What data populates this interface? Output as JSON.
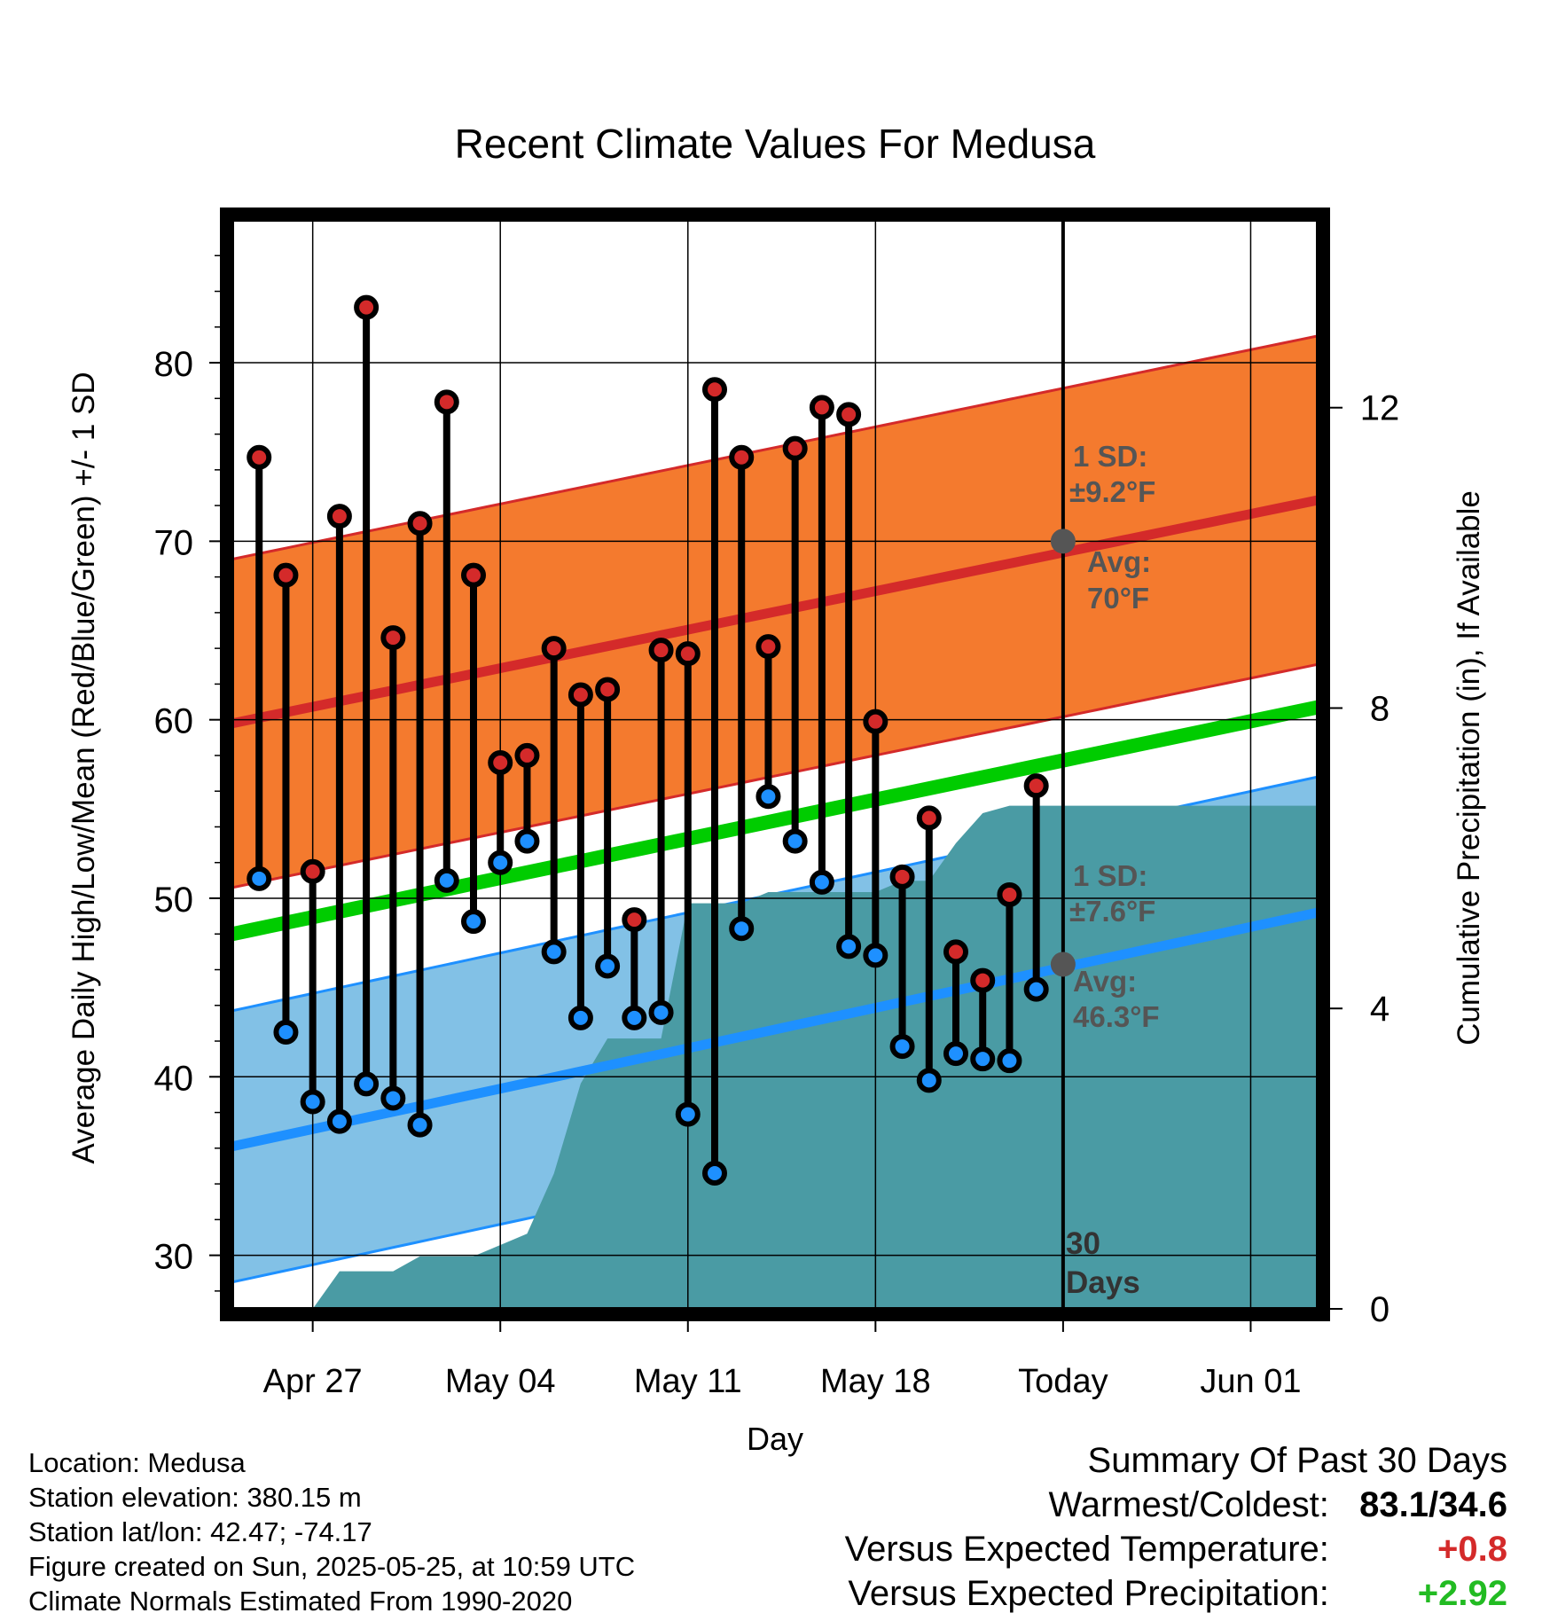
{
  "chart_data": {
    "type": "line",
    "title": "Recent Climate Values For Medusa",
    "xlabel": "Day",
    "ylabel": "Average Daily High/Low/Mean (Red/Blue/Green) +/- 1 SD",
    "ylabel_right": "Cumulative Precipitation (in), If Available",
    "x_tick_labels": [
      "Apr 27",
      "May 04",
      "May 11",
      "May 18",
      "Today",
      "Jun 01"
    ],
    "x_tick_days": [
      2,
      9,
      16,
      23,
      30,
      37
    ],
    "xlim_days": [
      -1,
      39.5
    ],
    "ylim": [
      27,
      88
    ],
    "y_ticks": [
      30,
      40,
      50,
      60,
      70,
      80
    ],
    "y2lim": [
      0,
      14.5
    ],
    "y2_ticks": [
      0,
      4,
      8,
      12
    ],
    "today_label": "30 Days",
    "daily_high": [
      74.7,
      68.1,
      51.5,
      71.4,
      83.1,
      64.6,
      71.0,
      77.8,
      68.1,
      57.6,
      58.0,
      64.0,
      61.4,
      61.7,
      48.8,
      63.9,
      63.7,
      78.5,
      74.7,
      64.1,
      75.2,
      77.5,
      77.1,
      59.9,
      51.2,
      54.5,
      47.0,
      45.4,
      50.2,
      56.3
    ],
    "daily_low": [
      51.1,
      42.5,
      38.6,
      37.5,
      39.6,
      38.8,
      37.3,
      51.0,
      48.7,
      52.0,
      53.2,
      47.0,
      43.3,
      46.2,
      43.3,
      43.6,
      37.9,
      34.6,
      48.3,
      55.7,
      53.2,
      50.9,
      47.3,
      46.8,
      41.7,
      39.8,
      41.3,
      41.0,
      40.9,
      44.9
    ],
    "normal_high": {
      "start": 59.8,
      "end": 72.3,
      "today": 70,
      "sd": 9.2
    },
    "normal_low": {
      "start": 36.1,
      "end": 49.2,
      "today": 46.3,
      "sd": 7.6
    },
    "normal_mean": {
      "start": 48.0,
      "end": 60.7
    },
    "cumulative_precip": [
      0.0,
      0.0,
      0.0,
      0.5,
      0.5,
      0.5,
      0.7,
      0.7,
      0.7,
      0.85,
      1.0,
      1.8,
      3.0,
      3.6,
      3.6,
      3.6,
      5.4,
      5.4,
      5.4,
      5.55,
      5.55,
      5.55,
      5.55,
      5.55,
      5.7,
      5.7,
      6.2,
      6.6,
      6.7,
      6.7,
      6.7
    ],
    "legend": {
      "high_sd_label": "1 SD:",
      "high_sd_value": "±9.2°F",
      "high_avg_label": "Avg:",
      "high_avg_value": "70°F",
      "low_sd_label": "1 SD:",
      "low_sd_value": "±7.6°F",
      "low_avg_label": "Avg:",
      "low_avg_value": "46.3°F"
    },
    "colors": {
      "high_band": "#f47a2e",
      "high_line": "#d42a2a",
      "mean_line": "#00cc00",
      "low_band": "#82c1e6",
      "low_line": "#1e90ff",
      "precip": "#4a9ba4",
      "high_dot": "#d42a2a",
      "low_dot": "#1e90ff",
      "annotation": "#555555"
    }
  },
  "footer": {
    "location": "Location: Medusa",
    "elevation": "Station elevation: 380.15 m",
    "latlon": "Station lat/lon: 42.47; -74.17",
    "created": "Figure created on Sun, 2025-05-25, at 10:59 UTC",
    "normals": "Climate Normals Estimated From 1990-2020"
  },
  "summary": {
    "heading": "Summary Of Past 30 Days",
    "warmest_coldest_label": "Warmest/Coldest:",
    "warmest_coldest_value": "83.1/34.6",
    "temp_label": "Versus Expected Temperature:",
    "temp_value": "+0.8",
    "temp_color": "#d42a2a",
    "precip_label": "Versus Expected Precipitation:",
    "precip_value": "+2.92",
    "precip_color": "#22bb22"
  }
}
